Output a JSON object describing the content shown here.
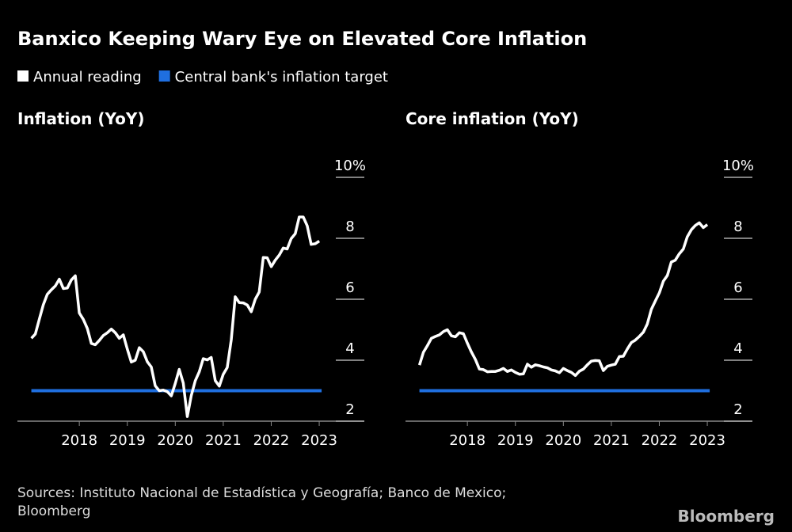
{
  "title": "Banxico Keeping Wary Eye on Elevated Core Inflation",
  "legend": [
    {
      "name": "Annual reading",
      "color": "#ffffff"
    },
    {
      "name": "Central bank's inflation target",
      "color": "#1f6fe0"
    }
  ],
  "source": "Sources: Instituto Nacional de Estadística y Geografía; Banco de Mexico;",
  "source_line2": "Bloomberg",
  "brand": "Bloomberg",
  "chart_data": [
    {
      "type": "line",
      "title": "Inflation (YoY)",
      "x": [
        2017,
        2017.083,
        2017.167,
        2017.25,
        2017.333,
        2017.417,
        2017.5,
        2017.583,
        2017.667,
        2017.75,
        2017.833,
        2017.917,
        2018,
        2018.083,
        2018.167,
        2018.25,
        2018.333,
        2018.417,
        2018.5,
        2018.583,
        2018.667,
        2018.75,
        2018.833,
        2018.917,
        2019,
        2019.083,
        2019.167,
        2019.25,
        2019.333,
        2019.417,
        2019.5,
        2019.583,
        2019.667,
        2019.75,
        2019.833,
        2019.917,
        2020,
        2020.083,
        2020.167,
        2020.25,
        2020.333,
        2020.417,
        2020.5,
        2020.583,
        2020.667,
        2020.75,
        2020.833,
        2020.917,
        2021,
        2021.083,
        2021.167,
        2021.25,
        2021.333,
        2021.417,
        2021.5,
        2021.583,
        2021.667,
        2021.75,
        2021.833,
        2021.917,
        2022,
        2022.083,
        2022.167,
        2022.25,
        2022.333,
        2022.417,
        2022.5,
        2022.583,
        2022.667,
        2022.75,
        2022.833,
        2022.917,
        2023
      ],
      "series": [
        {
          "color": "#ffffff",
          "values": [
            4.72,
            4.86,
            5.35,
            5.82,
            6.16,
            6.31,
            6.44,
            6.66,
            6.35,
            6.37,
            6.63,
            6.77,
            5.55,
            5.34,
            5.04,
            4.55,
            4.51,
            4.65,
            4.81,
            4.9,
            5.02,
            4.9,
            4.72,
            4.83,
            4.37,
            3.94,
            4.0,
            4.41,
            4.28,
            3.95,
            3.78,
            3.16,
            3.0,
            3.02,
            2.97,
            2.83,
            3.24,
            3.7,
            3.25,
            2.15,
            2.84,
            3.33,
            3.62,
            4.05,
            4.01,
            4.09,
            3.33,
            3.15,
            3.54,
            3.76,
            4.67,
            6.08,
            5.89,
            5.88,
            5.81,
            5.59,
            6.0,
            6.24,
            7.37,
            7.36,
            7.07,
            7.28,
            7.45,
            7.68,
            7.65,
            7.99,
            8.15,
            8.7,
            8.7,
            8.41,
            7.8,
            7.82,
            7.91
          ]
        }
      ],
      "target": {
        "color": "#1f6fe0",
        "x": [
          2017,
          2023.05
        ],
        "values": [
          3,
          3
        ]
      },
      "xlim": [
        2016.71,
        2023.94
      ],
      "xticks": [
        2018,
        2019,
        2020,
        2021,
        2022,
        2023
      ],
      "ylim": [
        2,
        10
      ],
      "yticks": [
        2,
        4,
        6,
        8,
        {
          "value": 10,
          "label": "10%"
        }
      ]
    },
    {
      "type": "line",
      "title": "Core inflation (YoY)",
      "x": [
        2017,
        2017.083,
        2017.167,
        2017.25,
        2017.333,
        2017.417,
        2017.5,
        2017.583,
        2017.667,
        2017.75,
        2017.833,
        2017.917,
        2018,
        2018.083,
        2018.167,
        2018.25,
        2018.333,
        2018.417,
        2018.5,
        2018.583,
        2018.667,
        2018.75,
        2018.833,
        2018.917,
        2019,
        2019.083,
        2019.167,
        2019.25,
        2019.333,
        2019.417,
        2019.5,
        2019.583,
        2019.667,
        2019.75,
        2019.833,
        2019.917,
        2020,
        2020.083,
        2020.167,
        2020.25,
        2020.333,
        2020.417,
        2020.5,
        2020.583,
        2020.667,
        2020.75,
        2020.833,
        2020.917,
        2021,
        2021.083,
        2021.167,
        2021.25,
        2021.333,
        2021.417,
        2021.5,
        2021.583,
        2021.667,
        2021.75,
        2021.833,
        2021.917,
        2022,
        2022.083,
        2022.167,
        2022.25,
        2022.333,
        2022.417,
        2022.5,
        2022.583,
        2022.667,
        2022.75,
        2022.833,
        2022.917,
        2023
      ],
      "series": [
        {
          "color": "#ffffff",
          "values": [
            3.84,
            4.26,
            4.48,
            4.72,
            4.78,
            4.83,
            4.94,
            5.0,
            4.8,
            4.77,
            4.9,
            4.87,
            4.56,
            4.27,
            4.02,
            3.71,
            3.69,
            3.62,
            3.63,
            3.63,
            3.67,
            3.73,
            3.63,
            3.68,
            3.6,
            3.54,
            3.55,
            3.87,
            3.77,
            3.85,
            3.82,
            3.78,
            3.75,
            3.68,
            3.65,
            3.59,
            3.73,
            3.66,
            3.6,
            3.5,
            3.64,
            3.71,
            3.85,
            3.97,
            3.99,
            3.98,
            3.66,
            3.8,
            3.84,
            3.87,
            4.12,
            4.13,
            4.37,
            4.58,
            4.66,
            4.78,
            4.92,
            5.19,
            5.67,
            5.94,
            6.21,
            6.59,
            6.78,
            7.22,
            7.28,
            7.49,
            7.65,
            8.05,
            8.28,
            8.42,
            8.51,
            8.35,
            8.45
          ]
        }
      ],
      "target": {
        "color": "#1f6fe0",
        "x": [
          2017,
          2023.05
        ],
        "values": [
          3,
          3
        ]
      },
      "xlim": [
        2016.71,
        2023.94
      ],
      "xticks": [
        2018,
        2019,
        2020,
        2021,
        2022,
        2023
      ],
      "ylim": [
        2,
        10
      ],
      "yticks": [
        2,
        4,
        6,
        8,
        {
          "value": 10,
          "label": "10%"
        }
      ]
    }
  ]
}
